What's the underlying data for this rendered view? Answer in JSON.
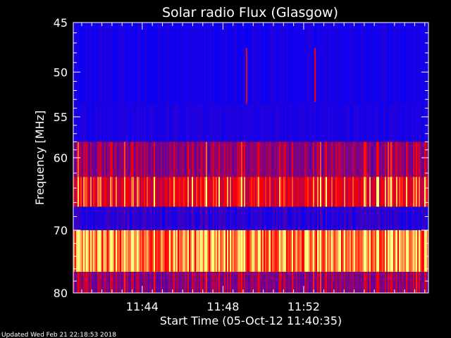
{
  "chart_data": {
    "type": "heatmap",
    "title": "Solar radio Flux (Glasgow)",
    "xlabel": "Start Time (05-Oct-12 11:40:35)",
    "ylabel": "Frequency [MHz]",
    "x_range_minutes": [
      0,
      17.6
    ],
    "x_ticks": [
      {
        "label": "11:44",
        "minutes": 3.417
      },
      {
        "label": "11:48",
        "minutes": 7.417
      },
      {
        "label": "11:52",
        "minutes": 11.417
      }
    ],
    "ylim": [
      80,
      45
    ],
    "y_ticks": [
      45,
      50,
      55,
      60,
      70,
      80
    ],
    "y_scale": "log",
    "colormap": [
      "#0000ff",
      "#ff0000",
      "#ffff80"
    ],
    "bands": [
      {
        "from_mhz": 45.0,
        "to_mhz": 53.5,
        "base": 0.02
      },
      {
        "from_mhz": 53.5,
        "to_mhz": 58.0,
        "base": 0.04
      },
      {
        "from_mhz": 58.0,
        "to_mhz": 62.5,
        "base": 0.32
      },
      {
        "from_mhz": 62.5,
        "to_mhz": 66.6,
        "base": 0.58
      },
      {
        "from_mhz": 66.6,
        "to_mhz": 70.0,
        "base": 0.1
      },
      {
        "from_mhz": 70.0,
        "to_mhz": 76.5,
        "base": 0.78
      },
      {
        "from_mhz": 76.5,
        "to_mhz": 80.0,
        "base": 0.3
      }
    ]
  },
  "footer": {
    "updated": "Updated Wed Feb 21 22:18:53 2018"
  }
}
